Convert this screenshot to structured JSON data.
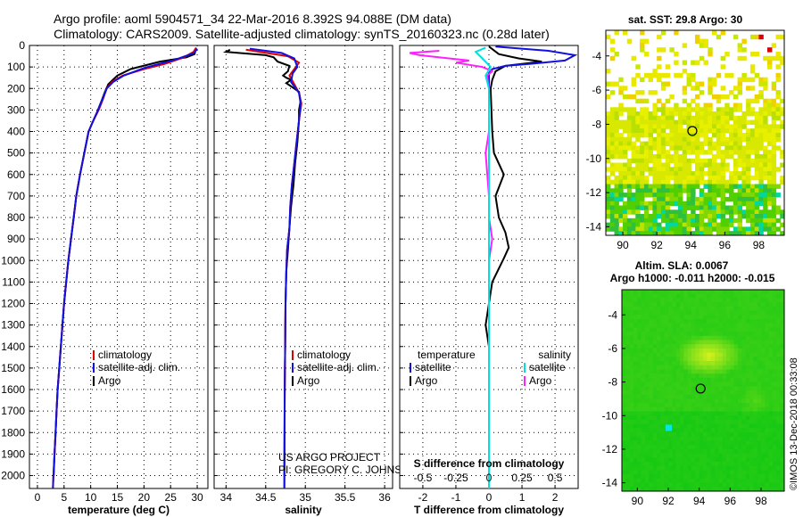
{
  "title": {
    "line1": "Argo profile: aoml 5904571_34 22-Mar-2016 8.392S 94.088E (DM data)",
    "line2": "Climatology: CARS2009. Satellite-adjusted climatology: synTS_20160323.nc (0.28d later)"
  },
  "colors": {
    "climatology": "#e00000",
    "satellite": "#1010e0",
    "argo": "#000000",
    "sat_t": "#1010e0",
    "sat_s": "#00e0e0",
    "argo_s": "#ff20ff"
  },
  "depth_axis": {
    "ticks": [
      0,
      100,
      200,
      300,
      400,
      500,
      600,
      700,
      800,
      900,
      1000,
      1100,
      1200,
      1300,
      1400,
      1500,
      1600,
      1700,
      1800,
      1900,
      2000
    ],
    "range": [
      0,
      2060
    ]
  },
  "chart_data": [
    {
      "type": "line",
      "id": "temperature",
      "xlabel": "temperature (deg C)",
      "xlim": [
        -1.5,
        32
      ],
      "xticks": [
        0,
        5,
        10,
        15,
        20,
        25,
        30
      ],
      "series": [
        {
          "name": "climatology",
          "color": "#e00000",
          "points": [
            [
              29.8,
              10
            ],
            [
              29.3,
              30
            ],
            [
              27.5,
              55
            ],
            [
              24,
              85
            ],
            [
              20,
              110
            ],
            [
              16,
              140
            ],
            [
              14,
              170
            ],
            [
              13,
              200
            ],
            [
              12.3,
              250
            ],
            [
              11.5,
              300
            ],
            [
              10.5,
              350
            ],
            [
              9.6,
              400
            ],
            [
              8.8,
              500
            ],
            [
              8.0,
              600
            ],
            [
              7.3,
              700
            ],
            [
              6.8,
              800
            ],
            [
              6.3,
              900
            ],
            [
              5.8,
              1000
            ],
            [
              5.4,
              1100
            ],
            [
              5.0,
              1200
            ],
            [
              4.7,
              1300
            ],
            [
              4.4,
              1400
            ],
            [
              4.1,
              1500
            ],
            [
              3.8,
              1600
            ],
            [
              3.6,
              1700
            ],
            [
              3.4,
              1800
            ],
            [
              3.2,
              1900
            ],
            [
              3.0,
              2000
            ],
            [
              2.9,
              2060
            ]
          ]
        },
        {
          "name": "satellite-adj. clim.",
          "color": "#1010e0",
          "points": [
            [
              30.0,
              15
            ],
            [
              29.4,
              35
            ],
            [
              26,
              65
            ],
            [
              20,
              105
            ],
            [
              16.2,
              140
            ],
            [
              14.2,
              170
            ],
            [
              13,
              200
            ],
            [
              12.2,
              250
            ],
            [
              11.4,
              300
            ],
            [
              10.5,
              350
            ],
            [
              9.6,
              400
            ],
            [
              8.8,
              500
            ],
            [
              8.0,
              600
            ],
            [
              7.3,
              700
            ],
            [
              6.8,
              800
            ],
            [
              6.3,
              900
            ],
            [
              5.8,
              1000
            ],
            [
              5.4,
              1100
            ],
            [
              5.0,
              1200
            ],
            [
              4.7,
              1300
            ],
            [
              4.4,
              1400
            ],
            [
              4.1,
              1500
            ],
            [
              3.8,
              1600
            ],
            [
              3.6,
              1700
            ],
            [
              3.4,
              1800
            ],
            [
              3.2,
              1900
            ],
            [
              3.0,
              2000
            ],
            [
              2.9,
              2060
            ]
          ]
        },
        {
          "name": "Argo",
          "color": "#000000",
          "points": [
            [
              29.7,
              20
            ],
            [
              29.5,
              40
            ],
            [
              28,
              55
            ],
            [
              23,
              75
            ],
            [
              17.5,
              110
            ],
            [
              15,
              140
            ],
            [
              13.3,
              180
            ],
            [
              12.6,
              220
            ],
            [
              12,
              260
            ],
            [
              11.2,
              310
            ],
            [
              10.3,
              360
            ],
            [
              9.6,
              400
            ],
            [
              8.8,
              500
            ],
            [
              8.0,
              600
            ],
            [
              7.3,
              700
            ],
            [
              6.8,
              800
            ],
            [
              6.3,
              900
            ],
            [
              5.8,
              1000
            ],
            [
              5.4,
              1100
            ],
            [
              5.0,
              1200
            ],
            [
              4.7,
              1300
            ],
            [
              4.4,
              1400
            ],
            [
              4.1,
              1500
            ],
            [
              3.8,
              1600
            ],
            [
              3.6,
              1700
            ],
            [
              3.4,
              1800
            ],
            [
              3.2,
              1900
            ],
            [
              3.05,
              2000
            ]
          ]
        }
      ],
      "legend": [
        "climatology",
        "satellite-adj. clim.",
        "Argo"
      ]
    },
    {
      "type": "line",
      "id": "salinity",
      "xlabel": "salinity",
      "xlim": [
        33.85,
        36.1
      ],
      "xticks": [
        34,
        34.5,
        35,
        35.5,
        36
      ],
      "xticklabels": [
        "34",
        "34.5",
        "35",
        "35.5",
        "36"
      ],
      "series": [
        {
          "name": "climatology",
          "color": "#e00000",
          "points": [
            [
              34.25,
              20
            ],
            [
              34.78,
              50
            ],
            [
              34.92,
              80
            ],
            [
              34.8,
              140
            ],
            [
              34.86,
              180
            ],
            [
              34.92,
              220
            ],
            [
              34.95,
              270
            ],
            [
              34.92,
              350
            ],
            [
              34.89,
              450
            ],
            [
              34.86,
              550
            ],
            [
              34.83,
              650
            ],
            [
              34.81,
              750
            ],
            [
              34.8,
              850
            ],
            [
              34.77,
              950
            ],
            [
              34.76,
              1050
            ],
            [
              34.75,
              1200
            ],
            [
              34.745,
              1400
            ],
            [
              34.74,
              1600
            ],
            [
              34.738,
              1800
            ],
            [
              34.735,
              2060
            ]
          ]
        },
        {
          "name": "satellite-adj. clim.",
          "color": "#1010e0",
          "points": [
            [
              34.3,
              15
            ],
            [
              34.7,
              35
            ],
            [
              34.86,
              60
            ],
            [
              34.9,
              100
            ],
            [
              34.84,
              130
            ],
            [
              34.82,
              170
            ],
            [
              34.92,
              220
            ],
            [
              34.94,
              270
            ],
            [
              34.92,
              350
            ],
            [
              34.89,
              450
            ],
            [
              34.86,
              550
            ],
            [
              34.83,
              650
            ],
            [
              34.81,
              750
            ],
            [
              34.8,
              850
            ],
            [
              34.77,
              950
            ],
            [
              34.76,
              1050
            ],
            [
              34.75,
              1200
            ],
            [
              34.745,
              1400
            ],
            [
              34.74,
              1600
            ],
            [
              34.738,
              1800
            ],
            [
              34.735,
              2060
            ]
          ]
        },
        {
          "name": "Argo",
          "color": "#000000",
          "points": [
            [
              34.05,
              20
            ],
            [
              34.0,
              30
            ],
            [
              34.5,
              45
            ],
            [
              34.6,
              55
            ],
            [
              34.65,
              75
            ],
            [
              34.8,
              95
            ],
            [
              34.78,
              120
            ],
            [
              34.72,
              140
            ],
            [
              34.76,
              150
            ],
            [
              34.82,
              160
            ],
            [
              34.76,
              175
            ],
            [
              34.92,
              215
            ],
            [
              34.94,
              260
            ],
            [
              34.92,
              300
            ],
            [
              34.92,
              350
            ],
            [
              34.9,
              450
            ],
            [
              34.87,
              550
            ],
            [
              34.85,
              650
            ],
            [
              34.82,
              750
            ],
            [
              34.8,
              850
            ],
            [
              34.78,
              950
            ],
            [
              34.76,
              1050
            ],
            [
              34.75,
              1200
            ],
            [
              34.745,
              1400
            ],
            [
              34.74,
              1600
            ],
            [
              34.738,
              1800
            ],
            [
              34.735,
              2000
            ]
          ]
        }
      ],
      "legend": [
        "climatology",
        "satellite-adj. clim.",
        "Argo"
      ],
      "credit": [
        "US ARGO PROJECT",
        "PI: GREGORY C. JOHNSON"
      ]
    },
    {
      "type": "line",
      "id": "difference",
      "xlabel": "T difference from climatology",
      "x2label": "S difference from climatology",
      "xlim": [
        -2.7,
        2.7
      ],
      "xticks": [
        -2,
        -1,
        0,
        1,
        2
      ],
      "x2ticks": [
        -0.5,
        -0.25,
        0,
        0.25,
        0.5
      ],
      "x2ticklabels": [
        "-0.5",
        "-0.25",
        "0",
        "0.25",
        "0.5"
      ],
      "series": [
        {
          "name": "temperature satellite",
          "color": "#1010e0",
          "points": [
            [
              0.2,
              5
            ],
            [
              1.8,
              25
            ],
            [
              2.6,
              45
            ],
            [
              2.3,
              70
            ],
            [
              1.3,
              85
            ],
            [
              0.5,
              95
            ],
            [
              0.1,
              110
            ],
            [
              0,
              130
            ],
            [
              0,
              2060
            ]
          ]
        },
        {
          "name": "temperature Argo",
          "color": "#000000",
          "points": [
            [
              0,
              5
            ],
            [
              0.3,
              40
            ],
            [
              0.9,
              60
            ],
            [
              1.6,
              75
            ],
            [
              0.5,
              95
            ],
            [
              0.2,
              120
            ],
            [
              0.1,
              160
            ],
            [
              0.05,
              200
            ],
            [
              0.1,
              400
            ],
            [
              0.15,
              500
            ],
            [
              0.45,
              600
            ],
            [
              0.2,
              700
            ],
            [
              0.3,
              800
            ],
            [
              0.5,
              870
            ],
            [
              0.6,
              940
            ],
            [
              0.45,
              990
            ],
            [
              0.1,
              1100
            ],
            [
              0,
              1200
            ],
            [
              -0.1,
              1300
            ],
            [
              0,
              1400
            ],
            [
              0,
              2000
            ]
          ]
        },
        {
          "name": "salinity satellite",
          "color": "#00e0e0",
          "points": [
            [
              -0.1,
              10
            ],
            [
              -0.4,
              30
            ],
            [
              -0.2,
              60
            ],
            [
              0.05,
              100
            ],
            [
              -0.1,
              140
            ],
            [
              0,
              200
            ],
            [
              0,
              2060
            ]
          ]
        },
        {
          "name": "salinity Argo",
          "color": "#ff20ff",
          "points": [
            [
              -1.5,
              25
            ],
            [
              -2.4,
              35
            ],
            [
              -2.1,
              45
            ],
            [
              -0.6,
              70
            ],
            [
              -1.0,
              80
            ],
            [
              -0.2,
              100
            ],
            [
              0.1,
              120
            ],
            [
              -0.05,
              140
            ],
            [
              0,
              200
            ],
            [
              0,
              400
            ],
            [
              -0.1,
              500
            ],
            [
              0,
              700
            ],
            [
              0,
              800
            ],
            [
              0.1,
              900
            ],
            [
              0,
              1000
            ],
            [
              0,
              1400
            ],
            [
              0,
              2000
            ]
          ]
        }
      ],
      "legend_left": {
        "head": "temperature",
        "items": [
          "satellite",
          "Argo"
        ]
      },
      "legend_right": {
        "head": "salinity",
        "items": [
          "satellite",
          "Argo"
        ]
      }
    },
    {
      "type": "heatmap",
      "id": "sst_map",
      "title": "sat. SST: 29.8 Argo: 30",
      "xlim": [
        89,
        99.5
      ],
      "ylim": [
        -14.5,
        -2.5
      ],
      "xticks": [
        90,
        92,
        94,
        96,
        98
      ],
      "yticks": [
        -14,
        -12,
        -10,
        -8,
        -6,
        -4
      ],
      "argo_pos": [
        94.09,
        -8.39
      ]
    },
    {
      "type": "heatmap",
      "id": "sla_map",
      "title": "Altim. SLA: 0.0067",
      "title2": "Argo h1000: -0.011 h2000: -0.015",
      "xlim": [
        89,
        99.5
      ],
      "ylim": [
        -14.5,
        -2.5
      ],
      "xticks": [
        90,
        92,
        94,
        96,
        98
      ],
      "yticks": [
        -14,
        -12,
        -10,
        -8,
        -6,
        -4
      ],
      "argo_pos": [
        94.09,
        -8.39
      ]
    }
  ],
  "footer": "©IMOS 13-Dec-2018 00:33:08"
}
